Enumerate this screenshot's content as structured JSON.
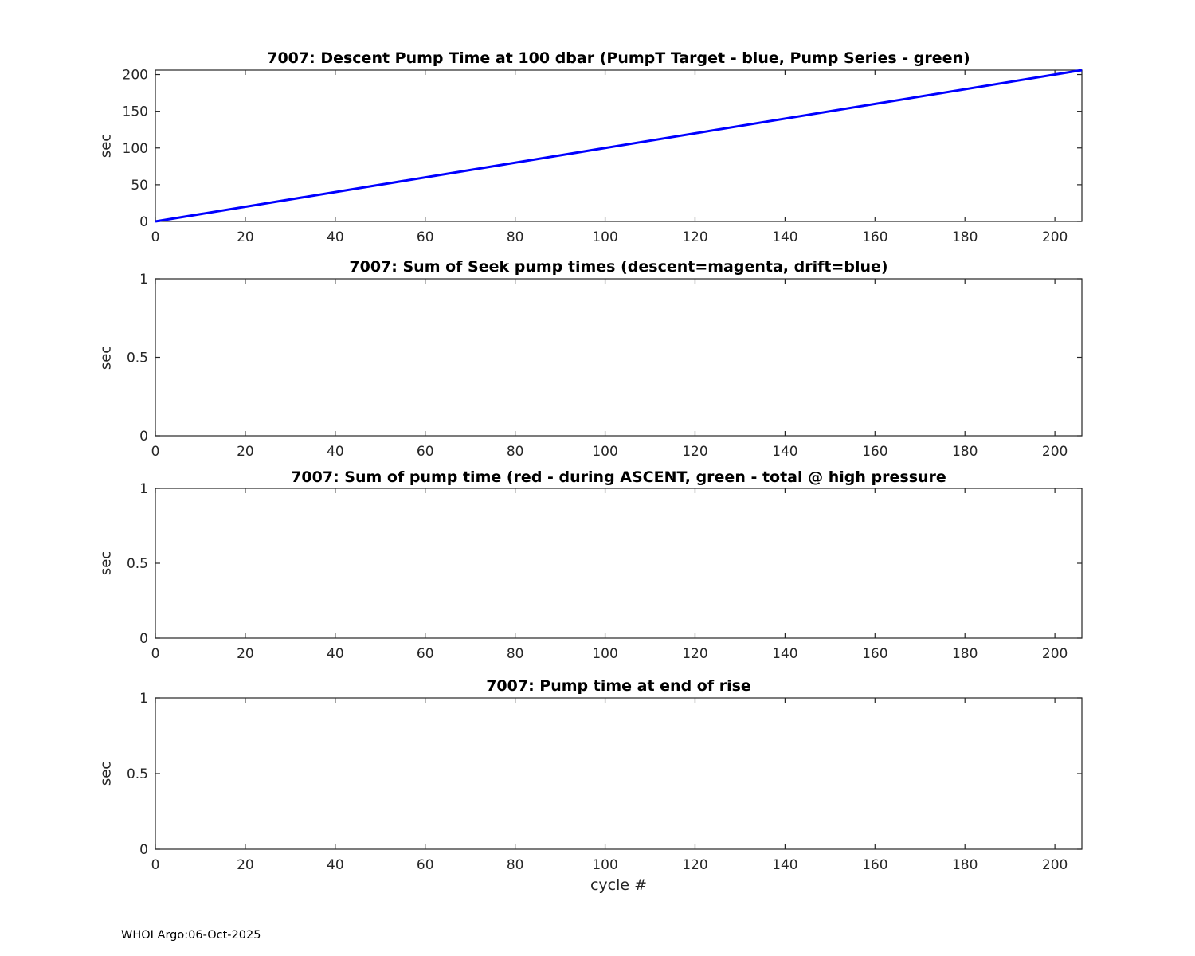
{
  "figure": {
    "footer": "WHOI Argo:06-Oct-2025",
    "background": "#ffffff",
    "axis_color": "#262626"
  },
  "chart_data": [
    {
      "type": "line",
      "title": "7007: Descent Pump Time at 100 dbar (PumpT Target - blue, Pump Series - green)",
      "xlabel": "",
      "ylabel": "sec",
      "xlim": [
        0,
        206
      ],
      "ylim": [
        0,
        206
      ],
      "xticks": [
        0,
        20,
        40,
        60,
        80,
        100,
        120,
        140,
        160,
        180,
        200
      ],
      "yticks": [
        0,
        50,
        100,
        150,
        200
      ],
      "grid": false,
      "legend": "none",
      "series": [
        {
          "name": "PumpT Target",
          "color": "#0000ff",
          "x": [
            0,
            206
          ],
          "y": [
            0,
            206
          ]
        }
      ]
    },
    {
      "type": "line",
      "title": "7007: Sum of Seek pump times (descent=magenta, drift=blue)",
      "xlabel": "",
      "ylabel": "sec",
      "xlim": [
        0,
        206
      ],
      "ylim": [
        0,
        1
      ],
      "xticks": [
        0,
        20,
        40,
        60,
        80,
        100,
        120,
        140,
        160,
        180,
        200
      ],
      "yticks": [
        0,
        0.5,
        1
      ],
      "grid": false,
      "legend": "none",
      "series": []
    },
    {
      "type": "line",
      "title": "7007: Sum of pump time (red - during ASCENT, green - total @ high pressure",
      "xlabel": "",
      "ylabel": "sec",
      "xlim": [
        0,
        206
      ],
      "ylim": [
        0,
        1
      ],
      "xticks": [
        0,
        20,
        40,
        60,
        80,
        100,
        120,
        140,
        160,
        180,
        200
      ],
      "yticks": [
        0,
        0.5,
        1
      ],
      "grid": false,
      "legend": "none",
      "series": []
    },
    {
      "type": "line",
      "title": "7007: Pump time at end of rise",
      "xlabel": "cycle #",
      "ylabel": "sec",
      "xlim": [
        0,
        206
      ],
      "ylim": [
        0,
        1
      ],
      "xticks": [
        0,
        20,
        40,
        60,
        80,
        100,
        120,
        140,
        160,
        180,
        200
      ],
      "yticks": [
        0,
        0.5,
        1
      ],
      "grid": false,
      "legend": "none",
      "series": []
    }
  ]
}
